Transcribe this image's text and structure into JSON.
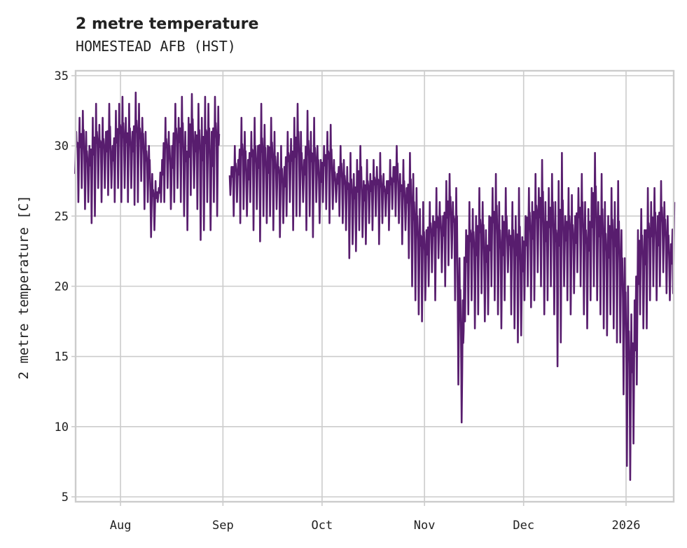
{
  "chart_data": {
    "type": "line",
    "title": "2 metre temperature",
    "subtitle": "HOMESTEAD AFB (HST)",
    "xlabel": "",
    "ylabel": "2 metre temperature [C]",
    "ylim": [
      4.65,
      35.35
    ],
    "xlim": [
      "2025-07-18T10:00:00Z",
      "2026-01-15T10:00:00Z"
    ],
    "grid": true,
    "line_color": "#581d6e",
    "yticks": [
      5,
      10,
      15,
      20,
      25,
      30,
      35
    ],
    "xticks": [
      {
        "date": "2025-08-01",
        "label": "Aug"
      },
      {
        "date": "2025-09-01",
        "label": "Sep"
      },
      {
        "date": "2025-10-01",
        "label": "Oct"
      },
      {
        "date": "2025-11-01",
        "label": "Nov"
      },
      {
        "date": "2025-12-01",
        "label": "Dec"
      },
      {
        "date": "2026-01-01",
        "label": "2026"
      }
    ],
    "series": [
      {
        "name": "2 metre temperature",
        "start_date": "2025-07-18",
        "note_values": "daily max / min (C); null = missing",
        "daily_max": [
          31,
          32,
          32.5,
          31,
          30,
          32,
          33,
          31.5,
          32,
          31,
          33,
          30,
          32.5,
          33,
          33.5,
          32,
          33,
          31,
          33.8,
          33,
          32,
          31,
          30,
          28,
          27.5,
          27,
          29,
          32,
          31,
          30,
          33,
          32,
          33.5,
          31,
          32,
          33.7,
          31,
          33,
          32,
          33.5,
          33,
          31,
          33.5,
          32.8,
          null,
          null,
          null,
          28.5,
          30,
          29,
          32,
          31,
          29,
          31,
          32,
          30,
          33,
          31.5,
          30,
          32,
          31,
          29.5,
          30,
          28.5,
          31,
          30.5,
          32,
          33,
          31,
          29,
          32.5,
          31,
          32,
          30,
          29,
          30,
          31,
          31.5,
          29,
          28,
          30,
          29,
          28.5,
          29.5,
          28,
          29,
          30,
          27.5,
          29,
          28,
          29,
          28.5,
          29.5,
          28,
          27.5,
          29,
          28.5,
          30,
          28,
          29,
          27,
          29.5,
          28,
          27,
          25.5,
          26,
          24,
          26,
          25,
          27,
          26,
          25,
          27.5,
          28,
          26,
          27,
          22,
          19,
          24,
          26,
          25.5,
          25,
          27,
          26,
          24,
          25,
          27,
          28,
          26,
          25,
          27,
          24,
          26,
          25,
          27,
          23.5,
          25,
          27,
          26,
          28,
          27,
          29,
          26,
          27,
          28,
          26,
          27.5,
          29.5,
          25,
          27,
          26.5,
          25,
          27,
          28,
          26,
          25.5,
          27,
          29.5,
          26,
          28,
          26,
          25,
          27,
          26,
          27.5,
          24,
          22,
          20,
          18,
          19,
          24,
          25.5,
          24,
          27,
          26,
          27,
          25,
          27.5,
          26,
          25,
          23,
          26
        ],
        "daily_min": [
          28,
          26,
          27,
          25.5,
          26,
          24.5,
          25,
          27,
          26,
          27,
          26.5,
          27,
          26,
          27,
          26,
          27,
          26,
          27,
          25.8,
          26,
          27.5,
          25.5,
          26,
          23.5,
          24,
          26,
          26,
          26,
          27,
          25.5,
          26,
          27,
          26,
          25,
          24,
          26.5,
          27,
          25.5,
          23.3,
          24,
          26,
          24,
          26,
          25,
          null,
          null,
          null,
          26.5,
          25,
          26,
          24.5,
          25.5,
          25,
          26,
          24,
          25.5,
          23.2,
          25,
          24.5,
          25,
          24,
          25.5,
          23.5,
          24.5,
          25,
          26,
          24,
          25,
          25,
          26,
          24,
          25,
          23.5,
          26,
          24.5,
          26,
          25.5,
          24.5,
          25.5,
          26,
          25,
          24.5,
          24,
          22,
          23,
          22.5,
          24,
          23.5,
          23,
          24.5,
          24,
          25,
          23,
          24.5,
          25,
          24,
          25.5,
          25,
          24.5,
          23,
          24,
          22,
          20,
          19,
          18,
          17.5,
          19,
          20,
          21,
          19,
          22,
          21,
          20,
          21.5,
          22,
          19,
          13,
          10.3,
          17.5,
          18,
          19,
          17,
          18,
          19.5,
          17.5,
          18,
          20,
          19,
          18,
          17,
          19,
          21,
          18,
          17,
          16,
          16.5,
          19,
          20,
          18.5,
          19,
          21,
          20,
          18,
          19,
          20,
          18,
          14.3,
          16,
          20,
          19,
          18,
          19.5,
          21,
          20,
          18,
          17,
          19,
          20,
          19,
          18,
          17,
          16.5,
          18,
          17,
          16,
          16,
          12.3,
          7.2,
          6.2,
          8.8,
          13,
          18,
          17,
          17,
          19,
          20,
          19,
          20,
          21,
          19.5,
          19,
          19.5
        ]
      }
    ]
  }
}
